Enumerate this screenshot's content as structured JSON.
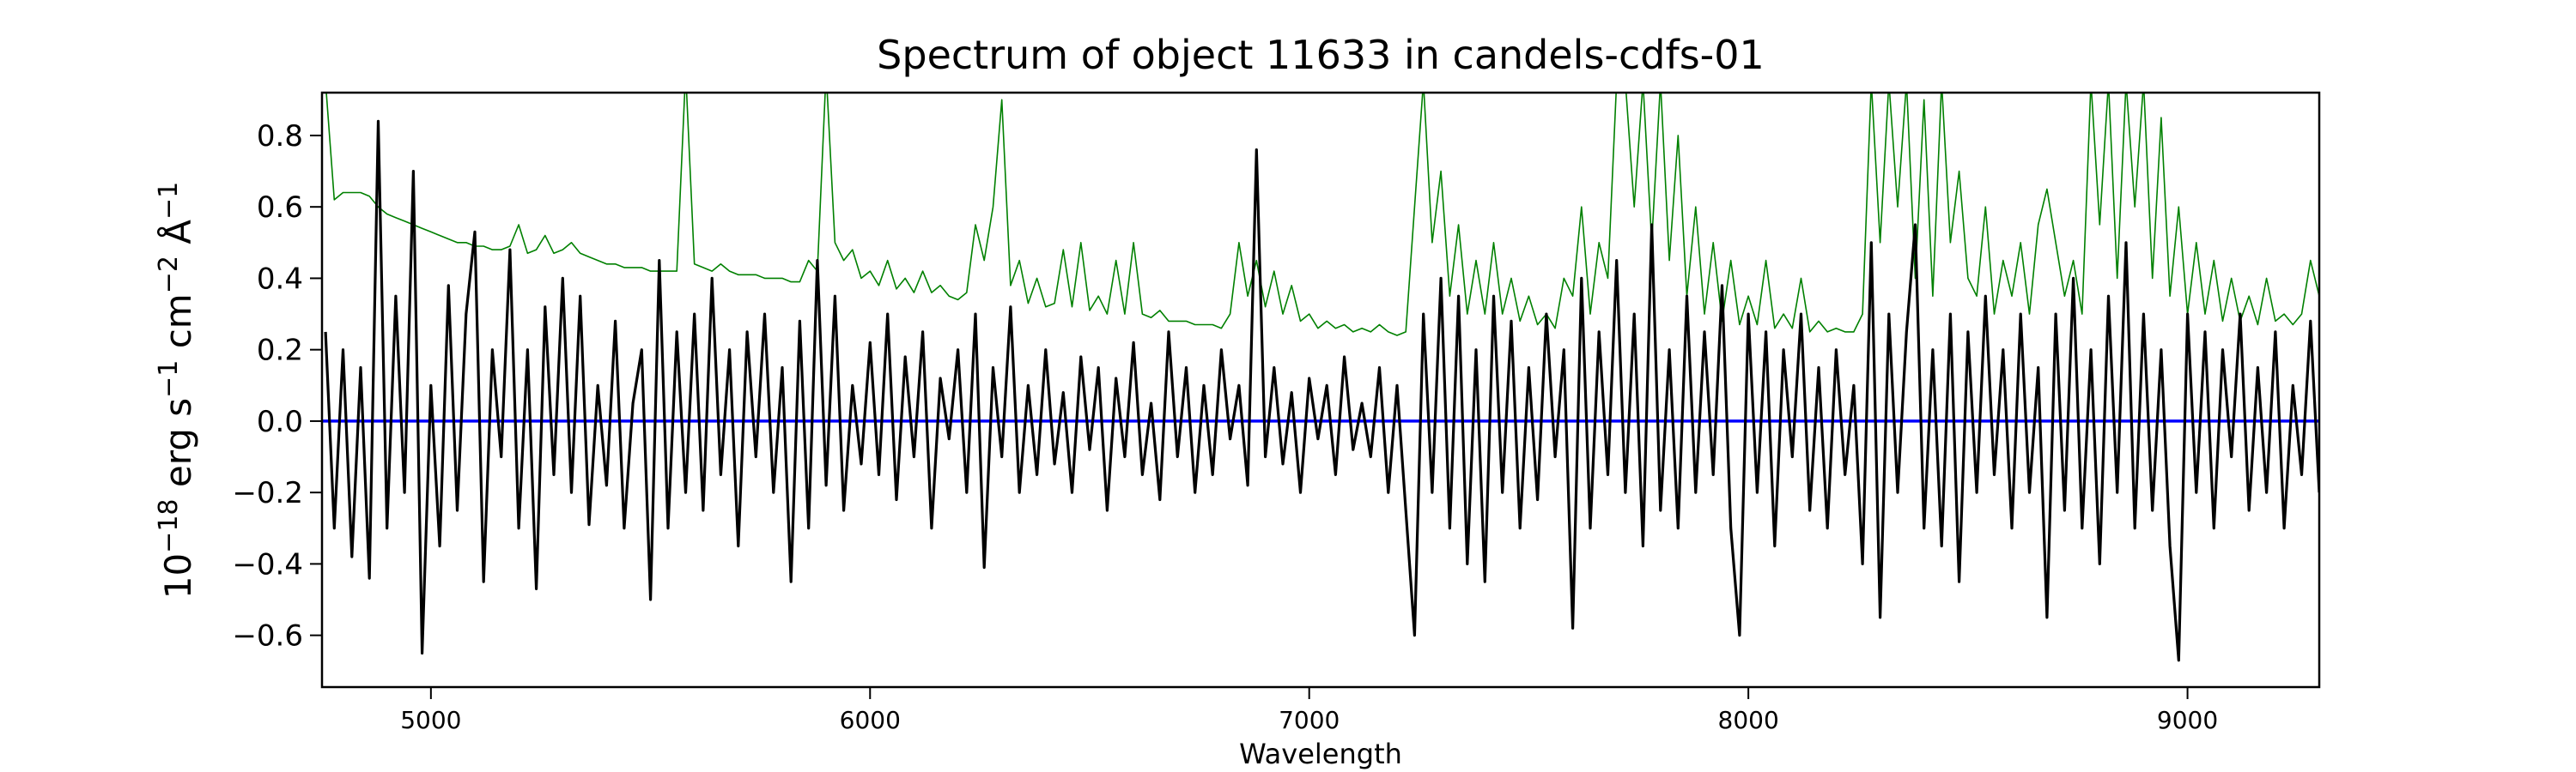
{
  "chart_data": {
    "type": "line",
    "title": "Spectrum of object 11633 in candels-cdfs-01",
    "xlabel": "Wavelength",
    "ylabel_parts": {
      "base": "10",
      "exp1": "−18",
      "erg": " erg s",
      "exp2": "−1",
      "cm": " cm",
      "exp3": "−2",
      "ang": " Å",
      "exp4": "−1"
    },
    "xlim": [
      4752,
      9300
    ],
    "ylim": [
      -0.745,
      0.92
    ],
    "xticks": [
      5000,
      6000,
      7000,
      8000,
      9000
    ],
    "xtick_labels": [
      "5000",
      "6000",
      "7000",
      "8000",
      "9000"
    ],
    "yticks": [
      -0.6,
      -0.4,
      -0.2,
      0.0,
      0.2,
      0.4,
      0.6,
      0.8
    ],
    "ytick_labels": [
      "−0.6",
      "−0.4",
      "−0.2",
      "0.0",
      "0.2",
      "0.4",
      "0.6",
      "0.8"
    ],
    "grid": false,
    "legend": "none",
    "x": [
      4760,
      4780,
      4800,
      4820,
      4840,
      4860,
      4880,
      4900,
      4920,
      4940,
      4960,
      4980,
      5000,
      5020,
      5040,
      5060,
      5080,
      5100,
      5120,
      5140,
      5160,
      5180,
      5200,
      5220,
      5240,
      5260,
      5280,
      5300,
      5320,
      5340,
      5360,
      5380,
      5400,
      5420,
      5440,
      5460,
      5480,
      5500,
      5520,
      5540,
      5560,
      5580,
      5600,
      5620,
      5640,
      5660,
      5680,
      5700,
      5720,
      5740,
      5760,
      5780,
      5800,
      5820,
      5840,
      5860,
      5880,
      5900,
      5920,
      5940,
      5960,
      5980,
      6000,
      6020,
      6040,
      6060,
      6080,
      6100,
      6120,
      6140,
      6160,
      6180,
      6200,
      6220,
      6240,
      6260,
      6280,
      6300,
      6320,
      6340,
      6360,
      6380,
      6400,
      6420,
      6440,
      6460,
      6480,
      6500,
      6520,
      6540,
      6560,
      6580,
      6600,
      6620,
      6640,
      6660,
      6680,
      6700,
      6720,
      6740,
      6760,
      6780,
      6800,
      6820,
      6840,
      6860,
      6880,
      6900,
      6920,
      6940,
      6960,
      6980,
      7000,
      7020,
      7040,
      7060,
      7080,
      7100,
      7120,
      7140,
      7160,
      7180,
      7200,
      7220,
      7240,
      7260,
      7280,
      7300,
      7320,
      7340,
      7360,
      7380,
      7400,
      7420,
      7440,
      7460,
      7480,
      7500,
      7520,
      7540,
      7560,
      7580,
      7600,
      7620,
      7640,
      7660,
      7680,
      7700,
      7720,
      7740,
      7760,
      7780,
      7800,
      7820,
      7840,
      7860,
      7880,
      7900,
      7920,
      7940,
      7960,
      7980,
      8000,
      8020,
      8040,
      8060,
      8080,
      8100,
      8120,
      8140,
      8160,
      8180,
      8200,
      8220,
      8240,
      8260,
      8280,
      8300,
      8320,
      8340,
      8360,
      8380,
      8400,
      8420,
      8440,
      8460,
      8480,
      8500,
      8520,
      8540,
      8560,
      8580,
      8600,
      8620,
      8640,
      8660,
      8680,
      8700,
      8720,
      8740,
      8760,
      8780,
      8800,
      8820,
      8840,
      8860,
      8880,
      8900,
      8920,
      8940,
      8960,
      8980,
      9000,
      9020,
      9040,
      9060,
      9080,
      9100,
      9120,
      9140,
      9160,
      9180,
      9200,
      9220,
      9240,
      9260,
      9280,
      9300
    ],
    "series": [
      {
        "color": "#008000",
        "values": [
          0.95,
          0.62,
          0.64,
          0.64,
          0.64,
          0.63,
          0.6,
          0.58,
          0.57,
          0.56,
          0.55,
          0.54,
          0.53,
          0.52,
          0.51,
          0.5,
          0.5,
          0.49,
          0.49,
          0.48,
          0.48,
          0.49,
          0.55,
          0.47,
          0.48,
          0.52,
          0.47,
          0.48,
          0.5,
          0.47,
          0.46,
          0.45,
          0.44,
          0.44,
          0.43,
          0.43,
          0.43,
          0.42,
          0.42,
          0.42,
          0.42,
          0.98,
          0.44,
          0.43,
          0.42,
          0.44,
          0.42,
          0.41,
          0.41,
          0.41,
          0.4,
          0.4,
          0.4,
          0.39,
          0.39,
          0.45,
          0.42,
          0.98,
          0.5,
          0.45,
          0.48,
          0.4,
          0.42,
          0.38,
          0.45,
          0.37,
          0.4,
          0.36,
          0.42,
          0.36,
          0.38,
          0.35,
          0.34,
          0.36,
          0.55,
          0.45,
          0.6,
          0.9,
          0.38,
          0.45,
          0.33,
          0.4,
          0.32,
          0.33,
          0.48,
          0.32,
          0.5,
          0.31,
          0.35,
          0.3,
          0.45,
          0.3,
          0.5,
          0.3,
          0.29,
          0.31,
          0.28,
          0.28,
          0.28,
          0.27,
          0.27,
          0.27,
          0.26,
          0.3,
          0.5,
          0.35,
          0.45,
          0.32,
          0.42,
          0.3,
          0.38,
          0.28,
          0.3,
          0.26,
          0.28,
          0.26,
          0.27,
          0.25,
          0.26,
          0.25,
          0.27,
          0.25,
          0.24,
          0.25,
          0.6,
          0.95,
          0.5,
          0.7,
          0.35,
          0.55,
          0.3,
          0.45,
          0.3,
          0.5,
          0.3,
          0.4,
          0.28,
          0.35,
          0.27,
          0.3,
          0.26,
          0.4,
          0.35,
          0.6,
          0.3,
          0.5,
          0.4,
          0.95,
          0.95,
          0.6,
          0.95,
          0.5,
          0.95,
          0.45,
          0.8,
          0.35,
          0.6,
          0.3,
          0.5,
          0.28,
          0.45,
          0.27,
          0.35,
          0.27,
          0.45,
          0.26,
          0.3,
          0.26,
          0.4,
          0.25,
          0.28,
          0.25,
          0.26,
          0.25,
          0.25,
          0.3,
          0.95,
          0.5,
          0.95,
          0.6,
          0.95,
          0.4,
          0.9,
          0.35,
          0.95,
          0.5,
          0.7,
          0.4,
          0.35,
          0.6,
          0.3,
          0.45,
          0.35,
          0.5,
          0.3,
          0.55,
          0.65,
          0.5,
          0.35,
          0.45,
          0.3,
          0.95,
          0.55,
          0.95,
          0.4,
          0.95,
          0.6,
          0.95,
          0.4,
          0.85,
          0.35,
          0.6,
          0.3,
          0.5,
          0.3,
          0.45,
          0.28,
          0.4,
          0.28,
          0.35,
          0.27,
          0.4,
          0.28,
          0.3,
          0.27,
          0.3,
          0.45,
          0.35
        ]
      },
      {
        "color": "#000000",
        "values": [
          0.25,
          -0.3,
          0.2,
          -0.38,
          0.15,
          -0.44,
          0.84,
          -0.3,
          0.35,
          -0.2,
          0.7,
          -0.65,
          0.1,
          -0.35,
          0.38,
          -0.25,
          0.3,
          0.53,
          -0.45,
          0.2,
          -0.1,
          0.48,
          -0.3,
          0.2,
          -0.47,
          0.32,
          -0.15,
          0.4,
          -0.2,
          0.35,
          -0.29,
          0.1,
          -0.18,
          0.28,
          -0.3,
          0.05,
          0.2,
          -0.5,
          0.45,
          -0.3,
          0.25,
          -0.2,
          0.3,
          -0.25,
          0.4,
          -0.15,
          0.2,
          -0.35,
          0.25,
          -0.1,
          0.3,
          -0.2,
          0.15,
          -0.45,
          0.28,
          -0.3,
          0.45,
          -0.18,
          0.35,
          -0.25,
          0.1,
          -0.12,
          0.22,
          -0.15,
          0.3,
          -0.22,
          0.18,
          -0.1,
          0.25,
          -0.3,
          0.12,
          -0.05,
          0.2,
          -0.2,
          0.3,
          -0.41,
          0.15,
          -0.1,
          0.32,
          -0.2,
          0.1,
          -0.15,
          0.2,
          -0.12,
          0.08,
          -0.2,
          0.18,
          -0.08,
          0.15,
          -0.25,
          0.12,
          -0.1,
          0.22,
          -0.15,
          0.05,
          -0.22,
          0.25,
          -0.1,
          0.15,
          -0.2,
          0.1,
          -0.15,
          0.2,
          -0.05,
          0.1,
          -0.18,
          0.76,
          -0.1,
          0.15,
          -0.12,
          0.08,
          -0.2,
          0.12,
          -0.05,
          0.1,
          -0.15,
          0.18,
          -0.08,
          0.05,
          -0.1,
          0.15,
          -0.2,
          0.1,
          -0.25,
          -0.6,
          0.3,
          -0.2,
          0.4,
          -0.3,
          0.35,
          -0.4,
          0.2,
          -0.45,
          0.35,
          -0.2,
          0.28,
          -0.3,
          0.15,
          -0.22,
          0.3,
          -0.1,
          0.2,
          -0.58,
          0.4,
          -0.3,
          0.25,
          -0.15,
          0.45,
          -0.2,
          0.3,
          -0.35,
          0.55,
          -0.25,
          0.2,
          -0.3,
          0.35,
          -0.2,
          0.25,
          -0.15,
          0.38,
          -0.3,
          -0.6,
          0.3,
          -0.2,
          0.25,
          -0.35,
          0.2,
          -0.1,
          0.3,
          -0.25,
          0.15,
          -0.3,
          0.2,
          -0.15,
          0.1,
          -0.4,
          0.5,
          -0.55,
          0.3,
          -0.2,
          0.25,
          0.55,
          -0.3,
          0.2,
          -0.35,
          0.3,
          -0.45,
          0.25,
          -0.2,
          0.35,
          -0.15,
          0.2,
          -0.3,
          0.3,
          -0.2,
          0.15,
          -0.55,
          0.3,
          -0.25,
          0.4,
          -0.3,
          0.2,
          -0.4,
          0.35,
          -0.2,
          0.5,
          -0.3,
          0.3,
          -0.25,
          0.2,
          -0.35,
          -0.67,
          0.3,
          -0.2,
          0.25,
          -0.3,
          0.2,
          -0.1,
          0.3,
          -0.25,
          0.15,
          -0.2,
          0.25,
          -0.3,
          0.1,
          -0.15,
          0.28,
          -0.2
        ]
      },
      {
        "color": "#0000ff",
        "values_constant": 0.0
      }
    ]
  }
}
